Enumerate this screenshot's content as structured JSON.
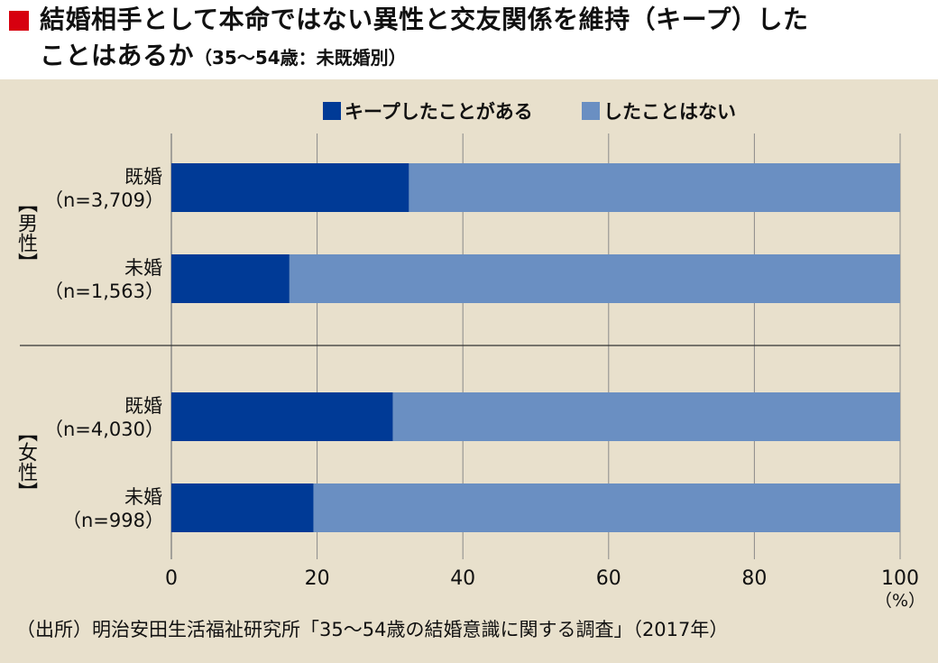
{
  "title": {
    "line1": "結婚相手として本命ではない異性と交友関係を維持（キープ）した",
    "line2": "ことはあるか",
    "sub": "（35〜54歳：未既婚別）"
  },
  "colors": {
    "title_marker": "#d7000f",
    "panel_bg": "#e8e0cc",
    "series_kept": "#003a96",
    "series_not": "#6a8fc2"
  },
  "chart_data": {
    "type": "bar",
    "orientation": "horizontal",
    "stacked": true,
    "percent_stacked": true,
    "legend_position": "top",
    "grid": true,
    "xlim": [
      0,
      100
    ],
    "x_ticks": [
      "0",
      "20",
      "40",
      "60",
      "80",
      "100"
    ],
    "unit_label": "（%）",
    "groups": [
      {
        "label": "【男性】",
        "categories": [
          "既婚",
          "未婚"
        ],
        "n": [
          "（n=3,709）",
          "（n=1,563）"
        ]
      },
      {
        "label": "【女性】",
        "categories": [
          "既婚",
          "未婚"
        ],
        "n": [
          "（n=4,030）",
          "（n=998）"
        ]
      }
    ],
    "series": [
      {
        "name": "キープしたことがある",
        "values": [
          32.6,
          16.2,
          30.4,
          19.5
        ]
      },
      {
        "name": "したことはない",
        "values": [
          67.4,
          83.8,
          69.6,
          80.5
        ]
      }
    ]
  },
  "source": "（出所）明治安田生活福祉研究所「35〜54歳の結婚意識に関する調査」（2017年）"
}
